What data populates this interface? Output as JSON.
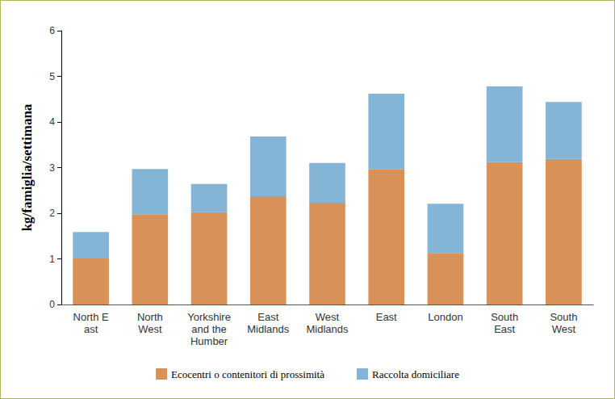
{
  "chart_data": {
    "type": "bar",
    "stacked": true,
    "y_label": "kg/famiglia/settimana",
    "categories": [
      "North E\nast",
      "North\nWest",
      "Yorkshire\nand the\nHumber",
      "East\nMidlands",
      "West\nMidlands",
      "East",
      "London",
      "South\nEast",
      "South\nWest"
    ],
    "series": [
      {
        "name": "Ecocentri o contenitori di prossimità",
        "color": "#d9915a",
        "values": [
          1.01,
          1.98,
          2.02,
          2.37,
          2.23,
          2.97,
          1.13,
          3.12,
          3.19
        ]
      },
      {
        "name": "Raccolta domiciliare",
        "color": "#84b5d6",
        "values": [
          0.58,
          0.99,
          0.62,
          1.31,
          0.87,
          1.65,
          1.08,
          1.66,
          1.25
        ]
      }
    ],
    "ylim": [
      0,
      6
    ],
    "yticks": [
      0,
      1,
      2,
      3,
      4,
      5,
      6
    ],
    "grid": false,
    "legend": "bottom"
  }
}
